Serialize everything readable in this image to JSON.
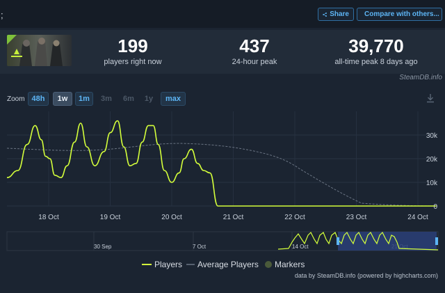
{
  "header": {
    "share_label": "Share",
    "compare_label": "Compare with others..."
  },
  "stats": [
    {
      "value": "199",
      "label": "players right now"
    },
    {
      "value": "437",
      "label": "24-hour peak"
    },
    {
      "value": "39,770",
      "label": "all-time peak 8 days ago"
    }
  ],
  "steamdb_credit": "SteamDB.info",
  "zoom": {
    "label": "Zoom",
    "buttons": [
      {
        "label": "48h",
        "state": "on"
      },
      {
        "label": "1w",
        "state": "active"
      },
      {
        "label": "1m",
        "state": "on"
      },
      {
        "label": "3m",
        "state": "off"
      },
      {
        "label": "6m",
        "state": "off"
      },
      {
        "label": "1y",
        "state": "off"
      },
      {
        "label": "max",
        "state": "on"
      }
    ]
  },
  "colors": {
    "players": "#d4ff3b",
    "average": "#6b7584",
    "markers": "#4a5a3a",
    "accent": "#5db5f5"
  },
  "icons": [
    "share-icon",
    "compare-icon",
    "download-icon"
  ],
  "chart_data": {
    "type": "line",
    "x_ticks": [
      "18 Oct",
      "19 Oct",
      "20 Oct",
      "21 Oct",
      "22 Oct",
      "23 Oct",
      "24 Oct"
    ],
    "y_ticks": [
      "30k",
      "20k",
      "10k",
      "0"
    ],
    "ylim": [
      0,
      38000
    ],
    "grid": true,
    "legend_position": "bottom",
    "series": [
      {
        "name": "Players",
        "x": [
          -0.72,
          -0.5,
          -0.35,
          -0.22,
          -0.12,
          -0.05,
          0.02,
          0.1,
          0.2,
          0.3,
          0.42,
          0.52,
          0.62,
          0.75,
          0.9,
          1.0,
          1.12,
          1.22,
          1.32,
          1.42,
          1.52,
          1.62,
          1.7,
          1.78,
          1.88,
          2.0,
          2.12,
          2.2,
          2.32,
          2.42,
          2.52,
          2.62,
          2.75,
          2.9,
          3.0,
          3.1,
          3.18,
          3.3,
          3.42,
          3.55,
          3.65,
          3.75,
          3.82,
          3.9,
          3.95,
          3.99,
          4.02,
          4.05,
          4.1,
          4.3,
          4.6,
          5.0,
          5.5,
          6.0,
          6.3
        ],
        "values": [
          12000,
          15000,
          26000,
          34000,
          28000,
          21000,
          20000,
          13000,
          12000,
          17000,
          27000,
          35000,
          25000,
          17000,
          23000,
          31000,
          36000,
          25000,
          17000,
          18000,
          27000,
          34000,
          34000,
          26000,
          15000,
          10000,
          14000,
          20000,
          24000,
          18000,
          15000,
          14000,
          0,
          0,
          0,
          0,
          0,
          0,
          0,
          0,
          0,
          0,
          0,
          0,
          0,
          0,
          0,
          0,
          0,
          0,
          0,
          0,
          0,
          0,
          0
        ],
        "values_note": "Players readings read off the y-axis (k = thousands)."
      }
    ]
  }
}
